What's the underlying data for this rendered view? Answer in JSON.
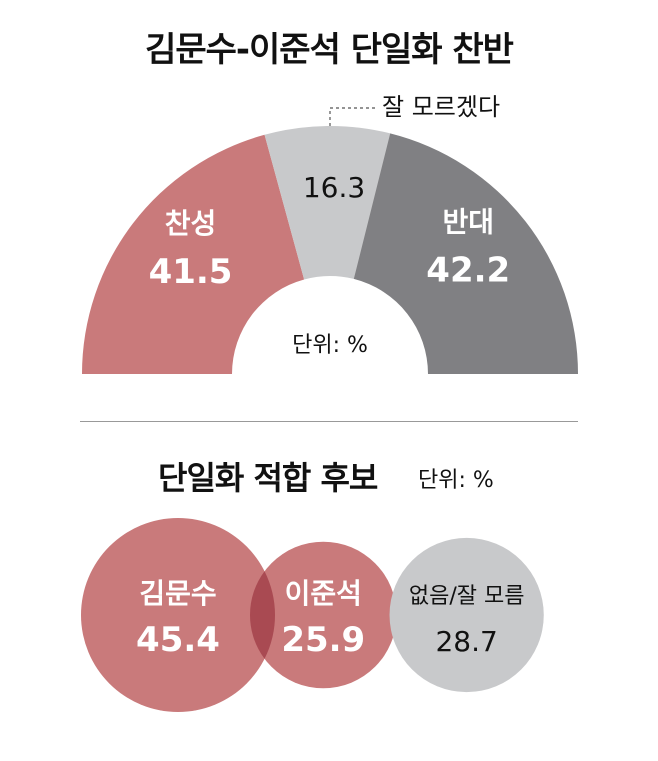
{
  "chart_data": [
    {
      "type": "pie",
      "title": "김문수-이준석 단일화 찬반",
      "unit_label": "단위: %",
      "categories": [
        "찬성",
        "잘 모르겠다",
        "반대"
      ],
      "values": [
        41.5,
        16.3,
        42.2
      ],
      "value_labels": [
        "41.5",
        "16.3",
        "42.2"
      ],
      "colors": [
        "#c97a7b",
        "#c8c9cb",
        "#808083"
      ],
      "style": "semicircle-donut"
    },
    {
      "type": "bubble",
      "title": "단일화 적합 후보",
      "unit_label": "단위: %",
      "categories": [
        "김문수",
        "이준석",
        "없음/잘 모름"
      ],
      "values": [
        45.4,
        25.9,
        28.7
      ],
      "value_labels": [
        "45.4",
        "25.9",
        "28.7"
      ],
      "colors": [
        "#c97a7b",
        "#c97a7b",
        "#c8c9cb"
      ],
      "overlap_color": "#a94a52"
    }
  ]
}
